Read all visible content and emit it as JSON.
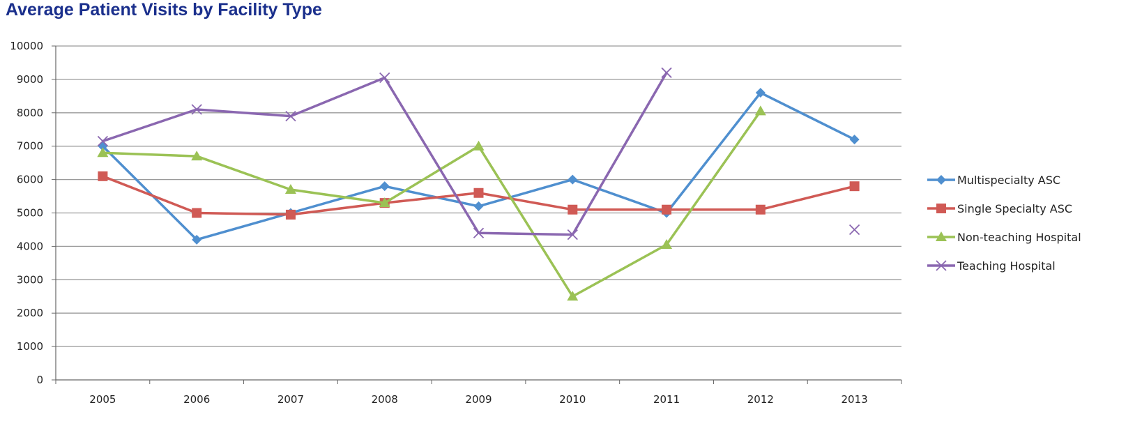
{
  "chart_data": {
    "type": "line",
    "title": "Average Patient Visits by Facility Type",
    "xlabel": "",
    "ylabel": "",
    "categories": [
      "2005",
      "2006",
      "2007",
      "2008",
      "2009",
      "2010",
      "2011",
      "2012",
      "2013"
    ],
    "ylim": [
      0,
      10000
    ],
    "yticks": [
      0,
      1000,
      2000,
      3000,
      4000,
      5000,
      6000,
      7000,
      8000,
      9000,
      10000
    ],
    "grid": true,
    "legend_position": "right",
    "series": [
      {
        "name": "Multispecialty ASC",
        "color": "#4f8fcf",
        "marker": "diamond",
        "values": [
          7000,
          4200,
          5000,
          5800,
          5200,
          6000,
          5000,
          8600,
          7200
        ]
      },
      {
        "name": "Single Specialty ASC",
        "color": "#d05a55",
        "marker": "square",
        "values": [
          6100,
          5000,
          4950,
          5300,
          5600,
          5100,
          5100,
          5100,
          5800
        ]
      },
      {
        "name": "Non-teaching Hospital",
        "color": "#9bc255",
        "marker": "triangle",
        "values": [
          6800,
          6700,
          5700,
          5300,
          7000,
          2500,
          4050,
          8050,
          null
        ]
      },
      {
        "name": "Teaching Hospital",
        "color": "#8a67b0",
        "marker": "x",
        "values": [
          7150,
          8100,
          7900,
          9050,
          4400,
          4350,
          9200,
          null,
          4500
        ]
      }
    ]
  }
}
